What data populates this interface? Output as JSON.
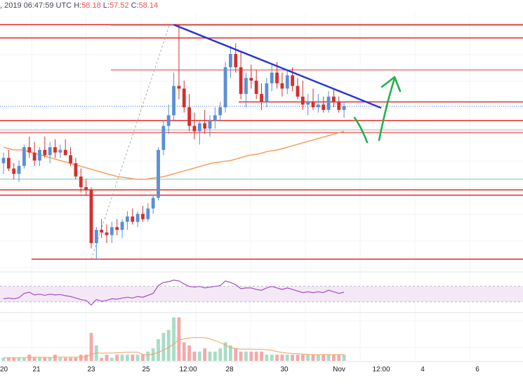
{
  "header": {
    "datetime": ", 2019 06:47:59 UTC",
    "ohlc": [
      {
        "k": "H:",
        "v": "58.18"
      },
      {
        "k": "L:",
        "v": "57.52"
      },
      {
        "k": "C:",
        "v": "58.14"
      }
    ]
  },
  "chart_data": {
    "type": "candlestick",
    "title": "",
    "x_tick_labels": [
      "20",
      "21",
      "23",
      "25",
      "12:00",
      "28",
      "30",
      "Nov",
      "12:00",
      "4",
      "6"
    ],
    "grid": true,
    "ohlc": [
      {
        "o": 56.0,
        "h": 56.4,
        "l": 55.6,
        "c": 56.2
      },
      {
        "o": 56.2,
        "h": 56.5,
        "l": 55.7,
        "c": 55.8
      },
      {
        "o": 55.8,
        "h": 56.0,
        "l": 55.4,
        "c": 55.6
      },
      {
        "o": 55.6,
        "h": 56.1,
        "l": 55.3,
        "c": 55.9
      },
      {
        "o": 55.9,
        "h": 56.7,
        "l": 55.8,
        "c": 56.6
      },
      {
        "o": 56.6,
        "h": 57.0,
        "l": 56.2,
        "c": 56.4
      },
      {
        "o": 56.4,
        "h": 56.8,
        "l": 55.9,
        "c": 56.1
      },
      {
        "o": 56.1,
        "h": 56.6,
        "l": 55.9,
        "c": 56.5
      },
      {
        "o": 56.5,
        "h": 57.0,
        "l": 56.2,
        "c": 56.3
      },
      {
        "o": 56.3,
        "h": 56.8,
        "l": 56.0,
        "c": 56.6
      },
      {
        "o": 56.6,
        "h": 56.9,
        "l": 56.2,
        "c": 56.4
      },
      {
        "o": 56.4,
        "h": 56.7,
        "l": 56.2,
        "c": 56.5
      },
      {
        "o": 56.5,
        "h": 56.9,
        "l": 56.3,
        "c": 56.3
      },
      {
        "o": 56.3,
        "h": 56.6,
        "l": 55.9,
        "c": 56.0
      },
      {
        "o": 56.0,
        "h": 56.2,
        "l": 55.4,
        "c": 55.5
      },
      {
        "o": 55.5,
        "h": 55.8,
        "l": 54.9,
        "c": 55.1
      },
      {
        "o": 55.1,
        "h": 55.4,
        "l": 54.8,
        "c": 55.0
      },
      {
        "o": 55.0,
        "h": 55.1,
        "l": 52.8,
        "c": 53.0
      },
      {
        "o": 53.0,
        "h": 53.6,
        "l": 52.4,
        "c": 53.5
      },
      {
        "o": 53.5,
        "h": 53.9,
        "l": 53.2,
        "c": 53.4
      },
      {
        "o": 53.4,
        "h": 53.7,
        "l": 53.0,
        "c": 53.3
      },
      {
        "o": 53.3,
        "h": 53.8,
        "l": 53.0,
        "c": 53.6
      },
      {
        "o": 53.6,
        "h": 53.9,
        "l": 53.3,
        "c": 53.5
      },
      {
        "o": 53.5,
        "h": 53.9,
        "l": 53.2,
        "c": 53.8
      },
      {
        "o": 53.8,
        "h": 54.2,
        "l": 53.5,
        "c": 54.0
      },
      {
        "o": 54.0,
        "h": 54.3,
        "l": 53.7,
        "c": 53.8
      },
      {
        "o": 53.8,
        "h": 54.2,
        "l": 53.6,
        "c": 54.1
      },
      {
        "o": 54.1,
        "h": 54.4,
        "l": 53.8,
        "c": 53.9
      },
      {
        "o": 53.9,
        "h": 54.5,
        "l": 53.8,
        "c": 54.3
      },
      {
        "o": 54.3,
        "h": 54.8,
        "l": 54.1,
        "c": 54.7
      },
      {
        "o": 54.7,
        "h": 56.6,
        "l": 54.6,
        "c": 56.5
      },
      {
        "o": 56.5,
        "h": 57.6,
        "l": 56.3,
        "c": 57.4
      },
      {
        "o": 57.4,
        "h": 58.2,
        "l": 57.1,
        "c": 57.8
      },
      {
        "o": 57.8,
        "h": 59.4,
        "l": 57.6,
        "c": 58.9
      },
      {
        "o": 58.9,
        "h": 61.2,
        "l": 58.4,
        "c": 58.8
      },
      {
        "o": 58.8,
        "h": 59.1,
        "l": 57.9,
        "c": 58.1
      },
      {
        "o": 58.1,
        "h": 58.6,
        "l": 57.2,
        "c": 57.4
      },
      {
        "o": 57.4,
        "h": 57.9,
        "l": 56.9,
        "c": 57.2
      },
      {
        "o": 57.2,
        "h": 57.6,
        "l": 56.7,
        "c": 57.5
      },
      {
        "o": 57.5,
        "h": 58.0,
        "l": 57.1,
        "c": 57.3
      },
      {
        "o": 57.3,
        "h": 57.8,
        "l": 57.0,
        "c": 57.6
      },
      {
        "o": 57.6,
        "h": 58.1,
        "l": 57.3,
        "c": 57.8
      },
      {
        "o": 57.8,
        "h": 58.3,
        "l": 57.6,
        "c": 58.1
      },
      {
        "o": 58.1,
        "h": 59.8,
        "l": 57.9,
        "c": 59.6
      },
      {
        "o": 59.6,
        "h": 60.4,
        "l": 59.2,
        "c": 60.1
      },
      {
        "o": 60.1,
        "h": 60.5,
        "l": 59.4,
        "c": 59.6
      },
      {
        "o": 59.6,
        "h": 60.2,
        "l": 58.4,
        "c": 58.6
      },
      {
        "o": 58.6,
        "h": 59.4,
        "l": 58.1,
        "c": 59.2
      },
      {
        "o": 59.2,
        "h": 59.7,
        "l": 58.8,
        "c": 59.1
      },
      {
        "o": 59.1,
        "h": 59.5,
        "l": 58.4,
        "c": 58.6
      },
      {
        "o": 58.6,
        "h": 59.0,
        "l": 58.0,
        "c": 58.3
      },
      {
        "o": 58.3,
        "h": 59.2,
        "l": 58.1,
        "c": 59.0
      },
      {
        "o": 59.0,
        "h": 59.7,
        "l": 58.7,
        "c": 59.4
      },
      {
        "o": 59.4,
        "h": 59.8,
        "l": 58.8,
        "c": 59.0
      },
      {
        "o": 59.0,
        "h": 59.4,
        "l": 58.5,
        "c": 58.8
      },
      {
        "o": 58.8,
        "h": 59.5,
        "l": 58.6,
        "c": 59.3
      },
      {
        "o": 59.3,
        "h": 59.6,
        "l": 58.7,
        "c": 58.9
      },
      {
        "o": 58.9,
        "h": 59.2,
        "l": 58.4,
        "c": 58.5
      },
      {
        "o": 58.5,
        "h": 59.1,
        "l": 58.0,
        "c": 58.2
      },
      {
        "o": 58.2,
        "h": 58.6,
        "l": 57.8,
        "c": 58.3
      },
      {
        "o": 58.3,
        "h": 58.8,
        "l": 58.0,
        "c": 58.1
      },
      {
        "o": 58.1,
        "h": 58.6,
        "l": 57.9,
        "c": 58.2
      },
      {
        "o": 58.2,
        "h": 58.5,
        "l": 57.9,
        "c": 58.0
      },
      {
        "o": 58.0,
        "h": 58.7,
        "l": 57.9,
        "c": 58.5
      },
      {
        "o": 58.5,
        "h": 58.8,
        "l": 58.1,
        "c": 58.3
      },
      {
        "o": 58.3,
        "h": 58.5,
        "l": 57.9,
        "c": 58.0
      },
      {
        "o": 58.0,
        "h": 58.3,
        "l": 57.7,
        "c": 58.14
      }
    ],
    "moving_average_100": [
      56.6,
      56.5,
      56.5,
      56.4,
      56.3,
      56.2,
      56.1,
      56.0,
      55.9,
      55.8,
      55.7,
      55.6,
      55.5,
      55.45,
      55.4,
      55.4,
      55.45,
      55.5,
      55.6,
      55.7,
      55.8,
      55.9,
      56.0,
      56.05,
      56.1,
      56.2,
      56.3,
      56.35,
      56.45,
      56.5,
      56.6,
      56.7,
      56.8,
      56.9,
      57.0,
      57.1,
      57.2
    ],
    "rsi": [
      38,
      40,
      38,
      41,
      52,
      55,
      48,
      50,
      47,
      50,
      48,
      49,
      46,
      44,
      40,
      36,
      34,
      22,
      36,
      32,
      34,
      38,
      37,
      40,
      42,
      40,
      44,
      42,
      47,
      52,
      72,
      80,
      82,
      86,
      84,
      76,
      70,
      68,
      70,
      66,
      68,
      70,
      72,
      84,
      80,
      74,
      64,
      66,
      66,
      62,
      60,
      66,
      70,
      66,
      62,
      66,
      62,
      58,
      54,
      56,
      54,
      56,
      54,
      60,
      56,
      52,
      55
    ],
    "rsi_band": [
      30,
      70
    ],
    "volume": [
      1,
      1,
      1,
      1,
      1,
      2,
      1,
      1,
      1,
      1,
      2,
      1,
      1,
      1,
      1,
      2,
      2,
      9,
      5,
      1,
      2,
      1,
      2,
      2,
      2,
      2,
      2,
      2,
      3,
      4,
      7,
      9,
      10,
      14,
      14,
      6,
      5,
      3,
      3,
      4,
      3,
      3,
      4,
      6,
      5,
      4,
      3,
      3,
      3,
      3,
      3,
      2,
      2,
      2,
      2,
      2,
      2,
      2,
      2,
      2,
      2,
      2,
      2,
      2,
      2,
      2,
      2
    ],
    "horizontal_levels": [
      61.2,
      60.7,
      59.5,
      58.3,
      57.6,
      57.15,
      55.0,
      54.8,
      52.4
    ],
    "trendline": {
      "from": {
        "bar": 33,
        "price": 61.2
      },
      "to": {
        "bar": 66,
        "price": 58.6
      }
    },
    "projection_arrow": "green"
  }
}
